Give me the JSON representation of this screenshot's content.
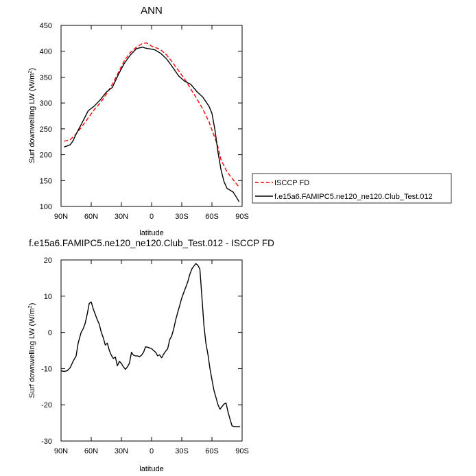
{
  "chart_data": [
    {
      "type": "line",
      "title": "ANN",
      "xlabel": "latitude",
      "ylabel": "Surf downwelling LW (W/m",
      "ylabel_sup": "2",
      "ylabel_close": ")",
      "xlim": [
        90,
        -90
      ],
      "ylim": [
        100,
        450
      ],
      "x_ticks": [
        90,
        60,
        30,
        0,
        -30,
        -60,
        -90
      ],
      "x_tick_labels": [
        "90N",
        "60N",
        "30N",
        "0",
        "30S",
        "60S",
        "90S"
      ],
      "y_ticks": [
        100,
        150,
        200,
        250,
        300,
        350,
        400,
        450
      ],
      "y_tick_labels": [
        "100",
        "150",
        "200",
        "250",
        "300",
        "350",
        "400",
        "450"
      ],
      "legend_position": "right",
      "series": [
        {
          "name": "ISCCP FD",
          "color": "#ff0000",
          "dash": "dashed",
          "x": [
            87,
            81,
            75,
            69,
            63,
            57,
            51,
            45,
            39,
            33,
            27,
            21,
            15,
            9,
            5,
            3,
            0,
            -3,
            -9,
            -15,
            -21,
            -27,
            -33,
            -39,
            -45,
            -51,
            -57,
            -63,
            -66,
            -69,
            -75,
            -81,
            -87
          ],
          "y": [
            226,
            229,
            240,
            255,
            271,
            287,
            300,
            317,
            336,
            359,
            382,
            398,
            408,
            415,
            416,
            414,
            410,
            408,
            403,
            393,
            378,
            362,
            346,
            327,
            308,
            288,
            264,
            232,
            215,
            190,
            167,
            152,
            137
          ]
        },
        {
          "name": "f.e15a6.FAMIPC5.ne120_ne120.Club_Test.012",
          "color": "#000000",
          "dash": "solid",
          "x": [
            87,
            81,
            78,
            75,
            69,
            63,
            57,
            51,
            45,
            39,
            33,
            27,
            21,
            15,
            9,
            6,
            3,
            0,
            -3,
            -9,
            -15,
            -21,
            -27,
            -33,
            -39,
            -45,
            -51,
            -57,
            -60,
            -63,
            -66,
            -69,
            -72,
            -75,
            -81,
            -84,
            -87
          ],
          "y": [
            215,
            219,
            227,
            240,
            262,
            285,
            294,
            306,
            321,
            330,
            355,
            377,
            393,
            405,
            408,
            406,
            405,
            404,
            403,
            396,
            385,
            369,
            352,
            342,
            336,
            322,
            311,
            294,
            280,
            248,
            205,
            171,
            148,
            135,
            128,
            119,
            109
          ]
        }
      ]
    },
    {
      "type": "line",
      "title": "f.e15a6.FAMIPC5.ne120_ne120.Club_Test.012 - ISCCP FD",
      "xlabel": "latitude",
      "ylabel": "Surf downwelling LW (W/m",
      "ylabel_sup": "2",
      "ylabel_close": ")",
      "xlim": [
        90,
        -90
      ],
      "ylim": [
        -30,
        20
      ],
      "x_ticks": [
        90,
        60,
        30,
        0,
        -30,
        -60,
        -90
      ],
      "x_tick_labels": [
        "90N",
        "60N",
        "30N",
        "0",
        "30S",
        "60S",
        "90S"
      ],
      "y_ticks": [
        -30,
        -20,
        -10,
        0,
        10,
        20
      ],
      "y_tick_labels": [
        "-30",
        "-20",
        "-10",
        "0",
        "10",
        "20"
      ],
      "series": [
        {
          "color": "#000000",
          "dash": "solid",
          "x": [
            90,
            87,
            84,
            81,
            78,
            75,
            73,
            70,
            68,
            66,
            64,
            62,
            60,
            58,
            56,
            54,
            52,
            50,
            48,
            46,
            44,
            42,
            40,
            38,
            36,
            34,
            32,
            30,
            28,
            26,
            24,
            22,
            20,
            18,
            16,
            14,
            12,
            10,
            8,
            6,
            4,
            2,
            0,
            -2,
            -4,
            -6,
            -8,
            -10,
            -12,
            -14,
            -16,
            -18,
            -20,
            -22,
            -24,
            -26,
            -28,
            -30,
            -32,
            -34,
            -36,
            -38,
            -40,
            -42,
            -44,
            -46,
            -48,
            -50,
            -52,
            -54,
            -56,
            -58,
            -60,
            -62,
            -64,
            -66,
            -68,
            -70,
            -72,
            -74,
            -76,
            -78,
            -80,
            -82,
            -84,
            -86,
            -88
          ],
          "y": [
            -10.6,
            -10.8,
            -10.6,
            -9.8,
            -8.0,
            -6.5,
            -3.0,
            0.0,
            1.0,
            2.5,
            5.0,
            8.0,
            8.4,
            6.5,
            5.0,
            3.5,
            2.3,
            0.0,
            -1.5,
            -3.5,
            -3.0,
            -5.0,
            -6.3,
            -7.2,
            -6.8,
            -9.2,
            -8.0,
            -8.6,
            -9.5,
            -10.2,
            -9.5,
            -8.5,
            -5.5,
            -6.3,
            -6.5,
            -6.5,
            -6.7,
            -6.3,
            -5.5,
            -4.0,
            -4.1,
            -4.3,
            -4.5,
            -5.0,
            -5.5,
            -6.5,
            -6.2,
            -7.0,
            -6.0,
            -5.2,
            -4.5,
            -2.0,
            -1.0,
            1.0,
            3.5,
            5.5,
            7.5,
            9.5,
            11.0,
            12.5,
            14.0,
            16.0,
            17.5,
            18.3,
            19.0,
            18.5,
            17.5,
            10.0,
            2.0,
            -3.0,
            -6.0,
            -10.0,
            -13.0,
            -16.0,
            -18.0,
            -20.0,
            -21.2,
            -20.5,
            -19.8,
            -19.5,
            -22.0,
            -24.0,
            -25.8,
            -26.0,
            -26.0,
            -26.0,
            -26.0
          ]
        }
      ]
    }
  ]
}
